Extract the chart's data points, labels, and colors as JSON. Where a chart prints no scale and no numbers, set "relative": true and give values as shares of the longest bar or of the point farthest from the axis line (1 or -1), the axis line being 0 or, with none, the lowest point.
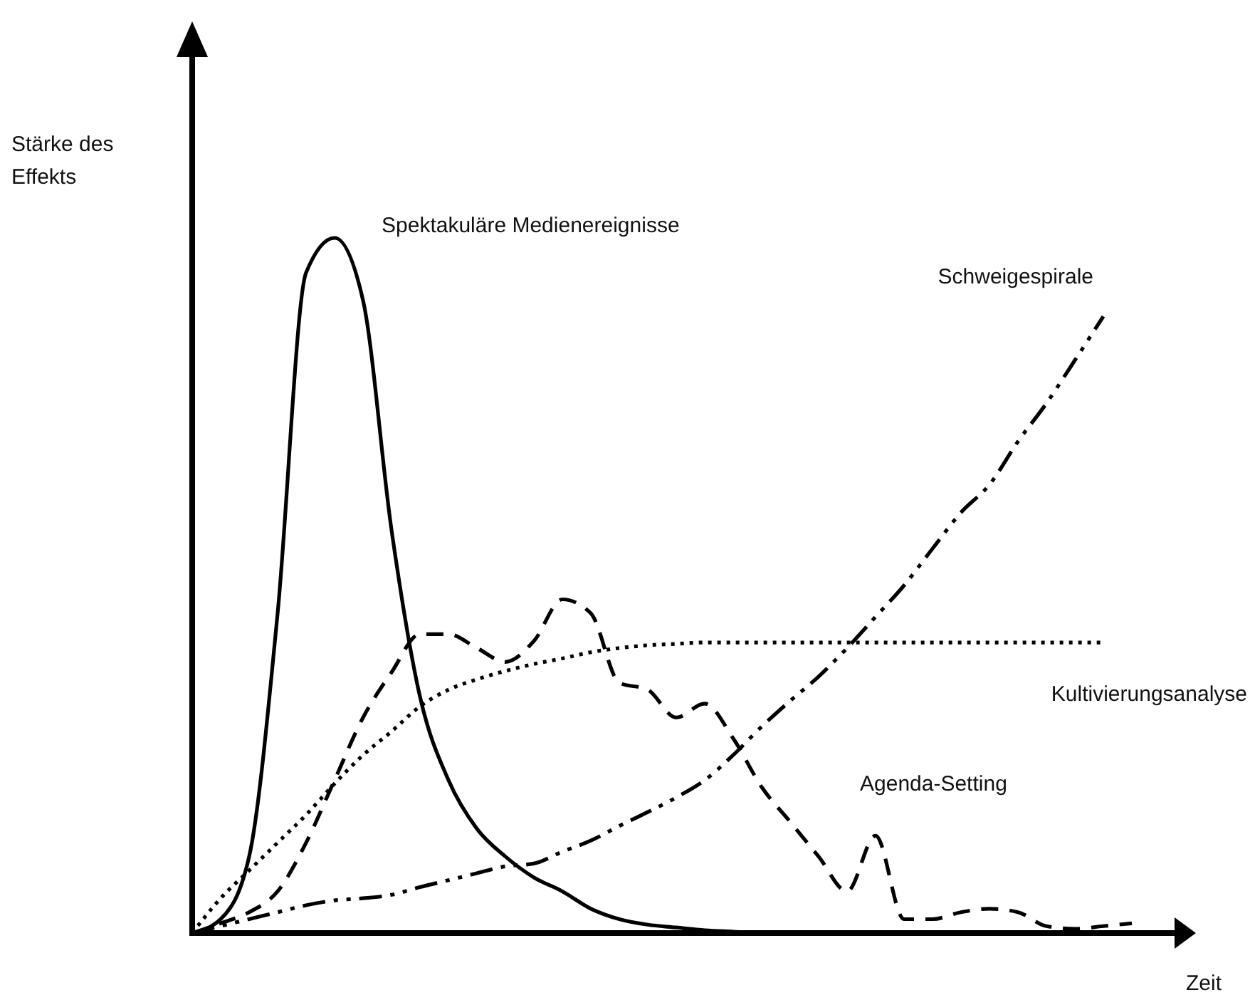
{
  "chart_data": {
    "type": "line",
    "relative": true,
    "xlabel": "Zeit",
    "ylabel": "Stärke des Effekts",
    "marker": "none",
    "categories": [
      null,
      null,
      null,
      null,
      null,
      null,
      null,
      null,
      null,
      null,
      null,
      null,
      null,
      null,
      null,
      null,
      null,
      null,
      null,
      null,
      null,
      null,
      null,
      null,
      null,
      null,
      null,
      null,
      null,
      null,
      null,
      null,
      null,
      null,
      null,
      null
    ],
    "series": [
      {
        "name": "Spektakuläre Medienereignisse",
        "color": "#000000",
        "line_style": "solid",
        "values": [
          0,
          0.02,
          0.11,
          0.46,
          0.95,
          1,
          0.91,
          0.58,
          0.34,
          0.22,
          0.15,
          0.11,
          0.08,
          0.06,
          0.035,
          0.02,
          0.012,
          0.008,
          0.004,
          0.002,
          0,
          0,
          0,
          null,
          null,
          null,
          null,
          null,
          null,
          null,
          null,
          null,
          null,
          null,
          null,
          null
        ]
      },
      {
        "name": "Agenda-Setting",
        "color": "#000000",
        "line_style": "dashed",
        "values": [
          0,
          0.014,
          0.03,
          0.06,
          0.13,
          0.22,
          0.31,
          0.375,
          0.43,
          0.43,
          0.41,
          0.39,
          0.42,
          0.48,
          0.46,
          0.36,
          0.35,
          0.31,
          0.33,
          0.28,
          0.21,
          0.16,
          0.11,
          0.06,
          0.14,
          0.02,
          0.02,
          0.03,
          0.035,
          0.03,
          0.01,
          0.006,
          0.01,
          0.014,
          null,
          null
        ]
      },
      {
        "name": "Kultivierungsanalyse",
        "color": "#000000",
        "line_style": "dotted",
        "values": [
          0,
          0.05,
          0.09,
          0.13,
          0.17,
          0.215,
          0.256,
          0.29,
          0.326,
          0.35,
          0.365,
          0.377,
          0.387,
          0.395,
          0.404,
          0.41,
          0.414,
          0.416,
          0.418,
          0.418,
          0.418,
          0.418,
          0.418,
          0.418,
          0.418,
          0.418,
          0.418,
          0.418,
          0.418,
          0.418,
          0.418,
          0.418,
          0.418,
          null,
          null,
          null
        ]
      },
      {
        "name": "Schweigespirale",
        "color": "#000000",
        "line_style": "dashdotdot",
        "values": [
          0,
          0.01,
          0.02,
          0.03,
          0.04,
          0.047,
          0.05,
          0.055,
          0.066,
          0.076,
          0.086,
          0.096,
          0.1,
          0.117,
          0.133,
          0.154,
          0.174,
          0.195,
          0.22,
          0.256,
          0.297,
          0.334,
          0.369,
          0.41,
          0.455,
          0.5,
          0.553,
          0.605,
          0.645,
          0.707,
          0.762,
          0.824,
          0.887,
          null,
          null,
          null
        ]
      }
    ]
  }
}
